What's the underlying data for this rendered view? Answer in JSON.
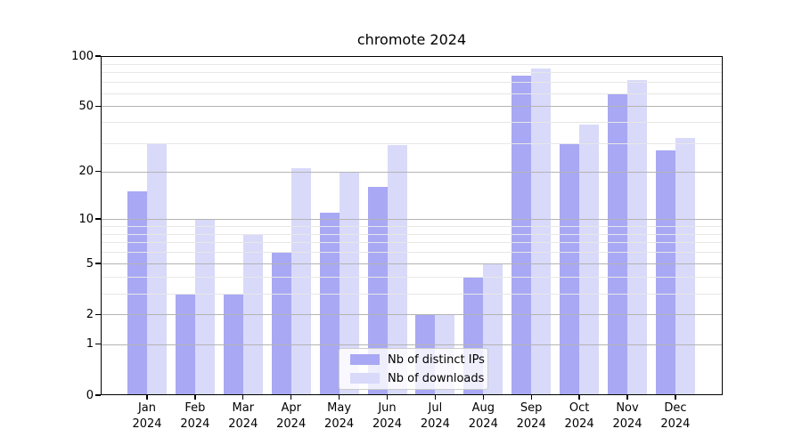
{
  "title": "chromote 2024",
  "chart_data": {
    "type": "bar",
    "title": "chromote 2024",
    "x_categories": [
      "Jan 2024",
      "Feb 2024",
      "Mar 2024",
      "Apr 2024",
      "May 2024",
      "Jun 2024",
      "Jul 2024",
      "Aug 2024",
      "Sep 2024",
      "Oct 2024",
      "Nov 2024",
      "Dec 2024"
    ],
    "series": [
      {
        "name": "Nb of distinct IPs",
        "color": "#a8a8f4",
        "values": [
          15,
          3,
          3,
          6,
          11,
          16,
          2,
          4,
          76,
          30,
          60,
          27
        ]
      },
      {
        "name": "Nb of downloads",
        "color": "#d9d9fa",
        "values": [
          30,
          10,
          8,
          21,
          20,
          29,
          2,
          5,
          84,
          39,
          72,
          32
        ]
      }
    ],
    "yscale": "log1p",
    "ylim": [
      0,
      100
    ],
    "y_major_ticks": [
      0,
      1,
      2,
      5,
      10,
      20,
      50,
      100
    ],
    "y_minor_ticks": [
      3,
      4,
      6,
      7,
      8,
      9,
      30,
      40,
      60,
      70,
      80,
      90
    ],
    "grid": true,
    "legend_position": "lower center"
  },
  "colors": {
    "background": "#ffffff",
    "bar_distinct_ips": "#a8a8f4",
    "bar_downloads": "#d9d9fa",
    "grid_major": "#b4b4b4",
    "grid_minor": "#e7e7e7",
    "axis": "#000000",
    "legend_border": "#cccccc"
  }
}
